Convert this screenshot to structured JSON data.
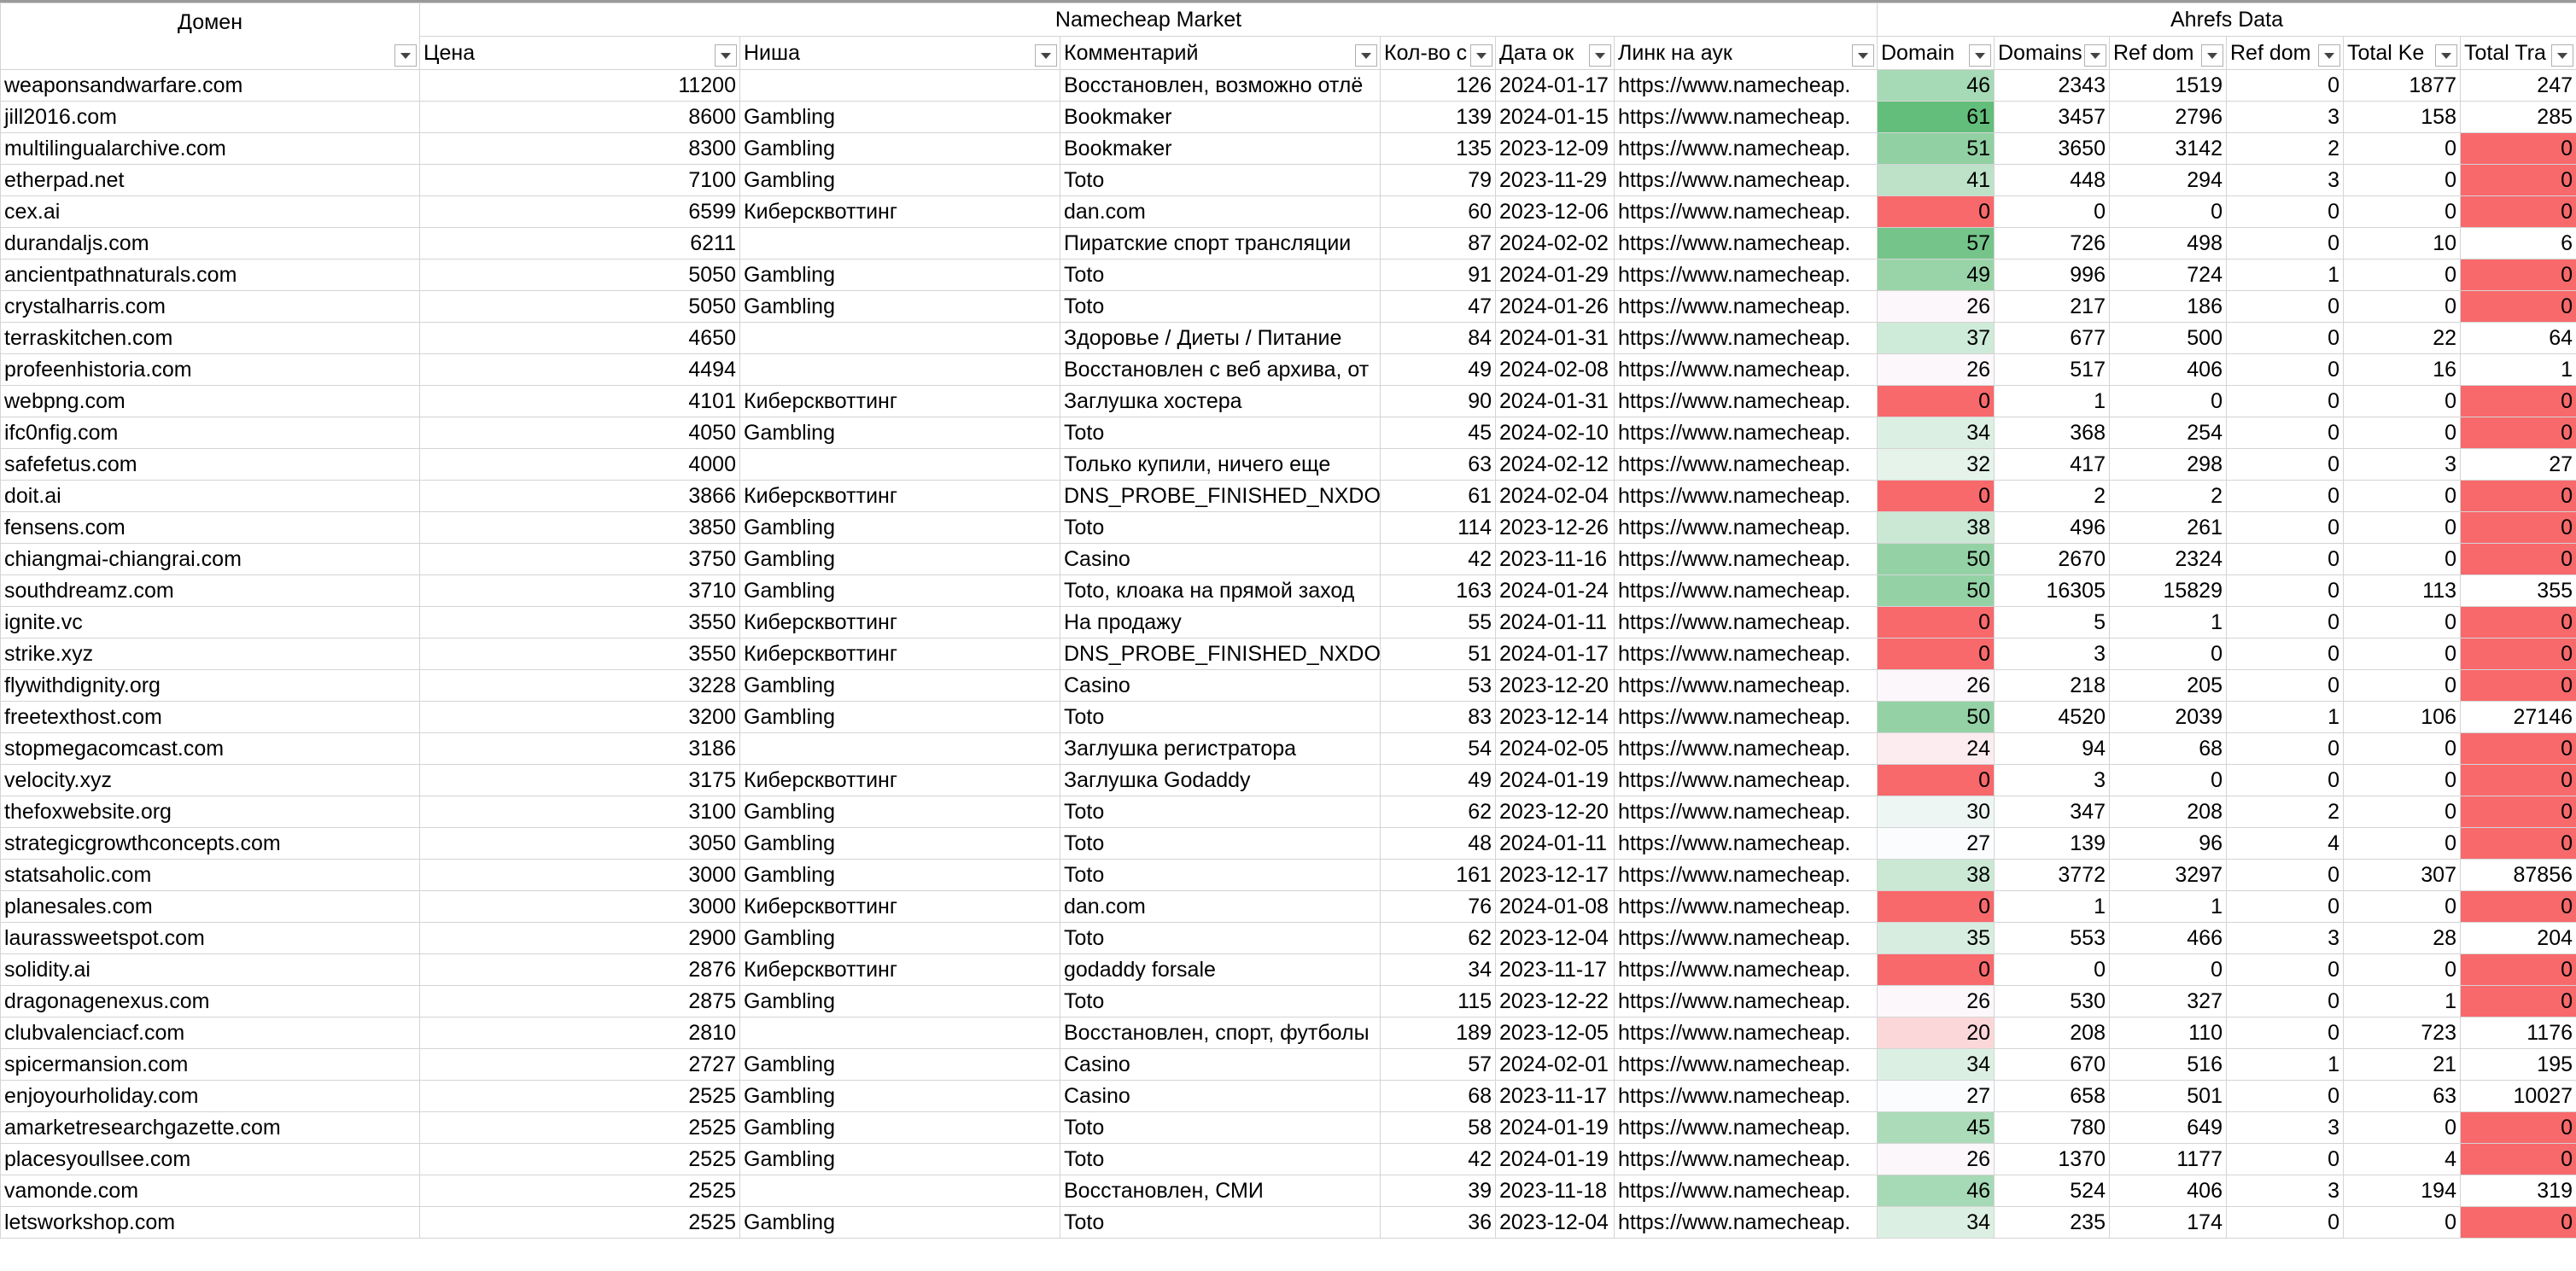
{
  "headers": {
    "domain": "Домен",
    "group_market": "Namecheap Market",
    "group_ahrefs": "Ahrefs Data",
    "columns": [
      "Цена",
      "Ниша",
      "Комментарий",
      "Кол-во с",
      "Дата ок",
      "Линк на аук",
      "Domain",
      "Domains",
      "Ref dom",
      "Ref dom",
      "Total Ke",
      "Total Tra"
    ]
  },
  "rows": [
    [
      "weaponsandwarfare.com",
      11200,
      null,
      "Восстановлен, возможно отлё",
      126,
      "2024-01-17",
      "https://www.namecheap.",
      46,
      2343,
      1519,
      0,
      1877,
      247
    ],
    [
      "jill2016.com",
      8600,
      "Gambling",
      "Bookmaker",
      139,
      "2024-01-15",
      "https://www.namecheap.",
      61,
      3457,
      2796,
      3,
      158,
      285
    ],
    [
      "multilingualarchive.com",
      8300,
      "Gambling",
      "Bookmaker",
      135,
      "2023-12-09",
      "https://www.namecheap.",
      51,
      3650,
      3142,
      2,
      0,
      0
    ],
    [
      "etherpad.net",
      7100,
      "Gambling",
      "Toto",
      79,
      "2023-11-29",
      "https://www.namecheap.",
      41,
      448,
      294,
      3,
      0,
      0
    ],
    [
      "cex.ai",
      6599,
      "Киберсквоттинг",
      "dan.com",
      60,
      "2023-12-06",
      "https://www.namecheap.",
      0,
      0,
      0,
      0,
      0,
      0
    ],
    [
      "durandaljs.com",
      6211,
      null,
      "Пиратские спорт трансляции",
      87,
      "2024-02-02",
      "https://www.namecheap.",
      57,
      726,
      498,
      0,
      10,
      6
    ],
    [
      "ancientpathnaturals.com",
      5050,
      "Gambling",
      "Toto",
      91,
      "2024-01-29",
      "https://www.namecheap.",
      49,
      996,
      724,
      1,
      0,
      0
    ],
    [
      "crystalharris.com",
      5050,
      "Gambling",
      "Toto",
      47,
      "2024-01-26",
      "https://www.namecheap.",
      26,
      217,
      186,
      0,
      0,
      0
    ],
    [
      "terraskitchen.com",
      4650,
      null,
      "Здоровье / Диеты / Питание",
      84,
      "2024-01-31",
      "https://www.namecheap.",
      37,
      677,
      500,
      0,
      22,
      64
    ],
    [
      "profeenhistoria.com",
      4494,
      null,
      "Восстановлен с веб архива, от",
      49,
      "2024-02-08",
      "https://www.namecheap.",
      26,
      517,
      406,
      0,
      16,
      1
    ],
    [
      "webpng.com",
      4101,
      "Киберсквоттинг",
      "Заглушка хостера",
      90,
      "2024-01-31",
      "https://www.namecheap.",
      0,
      1,
      0,
      0,
      0,
      0
    ],
    [
      "ifc0nfig.com",
      4050,
      "Gambling",
      "Toto",
      45,
      "2024-02-10",
      "https://www.namecheap.",
      34,
      368,
      254,
      0,
      0,
      0
    ],
    [
      "safefetus.com",
      4000,
      null,
      "Только купили, ничего еще",
      63,
      "2024-02-12",
      "https://www.namecheap.",
      32,
      417,
      298,
      0,
      3,
      27
    ],
    [
      "doit.ai",
      3866,
      "Киберсквоттинг",
      "DNS_PROBE_FINISHED_NXDOM",
      61,
      "2024-02-04",
      "https://www.namecheap.",
      0,
      2,
      2,
      0,
      0,
      0
    ],
    [
      "fensens.com",
      3850,
      "Gambling",
      "Toto",
      114,
      "2023-12-26",
      "https://www.namecheap.",
      38,
      496,
      261,
      0,
      0,
      0
    ],
    [
      "chiangmai-chiangrai.com",
      3750,
      "Gambling",
      "Casino",
      42,
      "2023-11-16",
      "https://www.namecheap.",
      50,
      2670,
      2324,
      0,
      0,
      0
    ],
    [
      "southdreamz.com",
      3710,
      "Gambling",
      "Toto, клоака на прямой заход",
      163,
      "2024-01-24",
      "https://www.namecheap.",
      50,
      16305,
      15829,
      0,
      113,
      355
    ],
    [
      "ignite.vc",
      3550,
      "Киберсквоттинг",
      "На продажу",
      55,
      "2024-01-11",
      "https://www.namecheap.",
      0,
      5,
      1,
      0,
      0,
      0
    ],
    [
      "strike.xyz",
      3550,
      "Киберсквоттинг",
      "DNS_PROBE_FINISHED_NXDOM",
      51,
      "2024-01-17",
      "https://www.namecheap.",
      0,
      3,
      0,
      0,
      0,
      0
    ],
    [
      "flywithdignity.org",
      3228,
      "Gambling",
      "Casino",
      53,
      "2023-12-20",
      "https://www.namecheap.",
      26,
      218,
      205,
      0,
      0,
      0
    ],
    [
      "freetexthost.com",
      3200,
      "Gambling",
      "Toto",
      83,
      "2023-12-14",
      "https://www.namecheap.",
      50,
      4520,
      2039,
      1,
      106,
      27146
    ],
    [
      "stopmegacomcast.com",
      3186,
      null,
      "Заглушка регистратора",
      54,
      "2024-02-05",
      "https://www.namecheap.",
      24,
      94,
      68,
      0,
      0,
      0
    ],
    [
      "velocity.xyz",
      3175,
      "Киберсквоттинг",
      "Заглушка Godaddy",
      49,
      "2024-01-19",
      "https://www.namecheap.",
      0,
      3,
      0,
      0,
      0,
      0
    ],
    [
      "thefoxwebsite.org",
      3100,
      "Gambling",
      "Toto",
      62,
      "2023-12-20",
      "https://www.namecheap.",
      30,
      347,
      208,
      2,
      0,
      0
    ],
    [
      "strategicgrowthconcepts.com",
      3050,
      "Gambling",
      "Toto",
      48,
      "2024-01-11",
      "https://www.namecheap.",
      27,
      139,
      96,
      4,
      0,
      0
    ],
    [
      "statsaholic.com",
      3000,
      "Gambling",
      "Toto",
      161,
      "2023-12-17",
      "https://www.namecheap.",
      38,
      3772,
      3297,
      0,
      307,
      87856
    ],
    [
      "planesales.com",
      3000,
      "Киберсквоттинг",
      "dan.com",
      76,
      "2024-01-08",
      "https://www.namecheap.",
      0,
      1,
      1,
      0,
      0,
      0
    ],
    [
      "laurassweetspot.com",
      2900,
      "Gambling",
      "Toto",
      62,
      "2023-12-04",
      "https://www.namecheap.",
      35,
      553,
      466,
      3,
      28,
      204
    ],
    [
      "solidity.ai",
      2876,
      "Киберсквоттинг",
      "godaddy forsale",
      34,
      "2023-11-17",
      "https://www.namecheap.",
      0,
      0,
      0,
      0,
      0,
      0
    ],
    [
      "dragonagenexus.com",
      2875,
      "Gambling",
      "Toto",
      115,
      "2023-12-22",
      "https://www.namecheap.",
      26,
      530,
      327,
      0,
      1,
      0
    ],
    [
      "clubvalenciacf.com",
      2810,
      null,
      "Восстановлен, спорт, футболы",
      189,
      "2023-12-05",
      "https://www.namecheap.",
      20,
      208,
      110,
      0,
      723,
      1176
    ],
    [
      "spicermansion.com",
      2727,
      "Gambling",
      "Casino",
      57,
      "2024-02-01",
      "https://www.namecheap.",
      34,
      670,
      516,
      1,
      21,
      195
    ],
    [
      "enjoyourholiday.com",
      2525,
      "Gambling",
      "Casino",
      68,
      "2023-11-17",
      "https://www.namecheap.",
      27,
      658,
      501,
      0,
      63,
      10027
    ],
    [
      "amarketresearchgazette.com",
      2525,
      "Gambling",
      "Toto",
      58,
      "2024-01-19",
      "https://www.namecheap.",
      45,
      780,
      649,
      3,
      0,
      0
    ],
    [
      "placesyoullsee.com",
      2525,
      "Gambling",
      "Toto",
      42,
      "2024-01-19",
      "https://www.namecheap.",
      26,
      1370,
      1177,
      0,
      4,
      0
    ],
    [
      "vamonde.com",
      2525,
      null,
      "Восстановлен, СМИ",
      39,
      "2023-11-18",
      "https://www.namecheap.",
      46,
      524,
      406,
      3,
      194,
      319
    ],
    [
      "letsworkshop.com",
      2525,
      "Gambling",
      "Toto",
      36,
      "2023-12-04",
      "https://www.namecheap.",
      34,
      235,
      174,
      0,
      0,
      0
    ]
  ]
}
